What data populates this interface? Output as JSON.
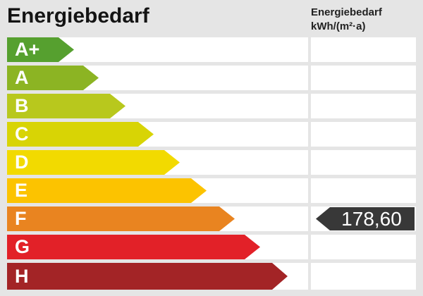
{
  "header": {
    "title": "Energiebedarf",
    "unit_title": "Energiebedarf",
    "unit": "kWh/(m²·a)"
  },
  "scale": {
    "classes": [
      {
        "label": "A+",
        "color": "#56a02f",
        "arrow_width": 95
      },
      {
        "label": "A",
        "color": "#8cb423",
        "arrow_width": 130
      },
      {
        "label": "B",
        "color": "#b8c81d",
        "arrow_width": 168
      },
      {
        "label": "C",
        "color": "#d8d405",
        "arrow_width": 208
      },
      {
        "label": "D",
        "color": "#f2da00",
        "arrow_width": 245
      },
      {
        "label": "E",
        "color": "#fcc300",
        "arrow_width": 283
      },
      {
        "label": "F",
        "color": "#e98420",
        "arrow_width": 323
      },
      {
        "label": "G",
        "color": "#e22128",
        "arrow_width": 359
      },
      {
        "label": "H",
        "color": "#a32426",
        "arrow_width": 398
      }
    ]
  },
  "value_badge": {
    "value": "178,60",
    "marked_class": "F",
    "color": "#383838",
    "text_color": "#ffffff"
  },
  "chart_data": {
    "type": "bar",
    "title": "Energiebedarf",
    "ylabel": "kWh/(m²·a)",
    "categories": [
      "A+",
      "A",
      "B",
      "C",
      "D",
      "E",
      "F",
      "G",
      "H"
    ],
    "values": [
      95,
      130,
      168,
      208,
      245,
      283,
      323,
      359,
      398
    ],
    "bar_colors": [
      "#56a02f",
      "#8cb423",
      "#b8c81d",
      "#d8d405",
      "#f2da00",
      "#fcc300",
      "#e98420",
      "#e22128",
      "#a32426"
    ],
    "marked_value": 178.6,
    "marked_class": "F",
    "legend_position": "none",
    "grid": false
  }
}
